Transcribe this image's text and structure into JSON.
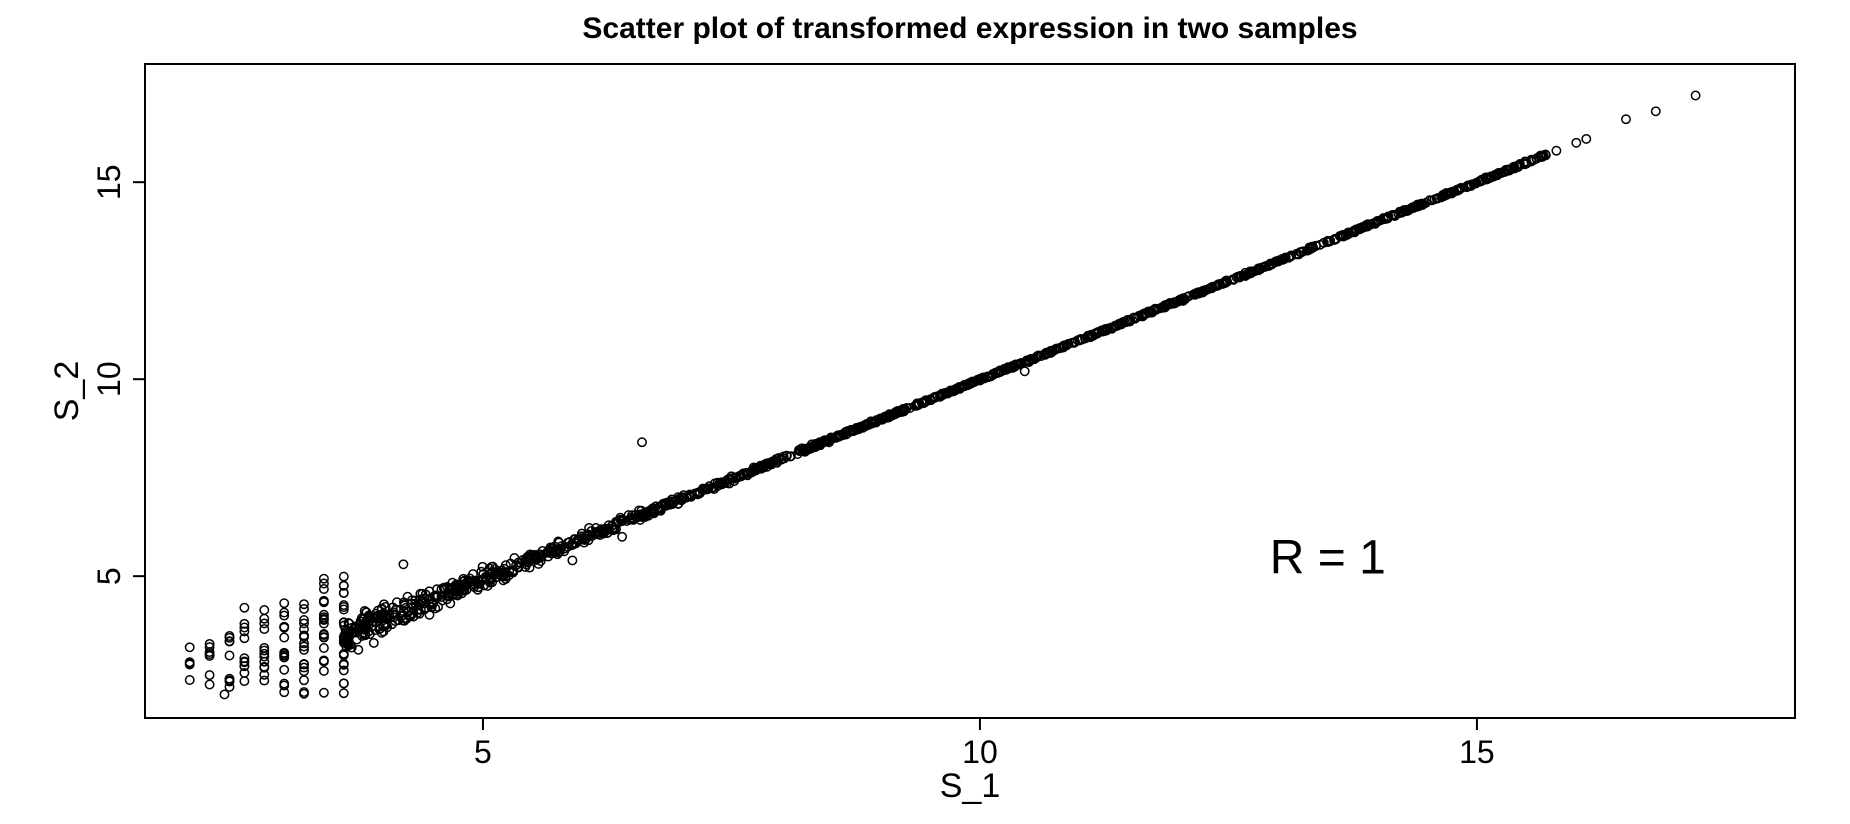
{
  "chart_data": {
    "type": "scatter",
    "title": "Scatter plot of transformed expression in two samples",
    "xlabel": "S_1",
    "ylabel": "S_2",
    "xlim": [
      1.6,
      18.2
    ],
    "ylim": [
      1.4,
      18.0
    ],
    "xticks": [
      5,
      10,
      15
    ],
    "yticks": [
      5,
      10,
      15
    ],
    "grid": false,
    "marker": "open-circle",
    "point_color": "#000000",
    "annotation": "R = 1",
    "outliers": [
      {
        "x": 6.6,
        "y": 8.4
      },
      {
        "x": 10.45,
        "y": 10.2
      },
      {
        "x": 4.2,
        "y": 5.3
      },
      {
        "x": 2.6,
        "y": 4.2
      },
      {
        "x": 17.2,
        "y": 17.2
      },
      {
        "x": 16.8,
        "y": 16.8
      },
      {
        "x": 16.5,
        "y": 16.6
      },
      {
        "x": 16.1,
        "y": 16.1
      },
      {
        "x": 16.0,
        "y": 16.0
      },
      {
        "x": 15.8,
        "y": 15.8
      },
      {
        "x": 15.6,
        "y": 15.6
      },
      {
        "x": 2.4,
        "y": 2.0
      },
      {
        "x": 3.0,
        "y": 4.0
      },
      {
        "x": 5.9,
        "y": 5.4
      },
      {
        "x": 6.4,
        "y": 6.0
      }
    ]
  }
}
